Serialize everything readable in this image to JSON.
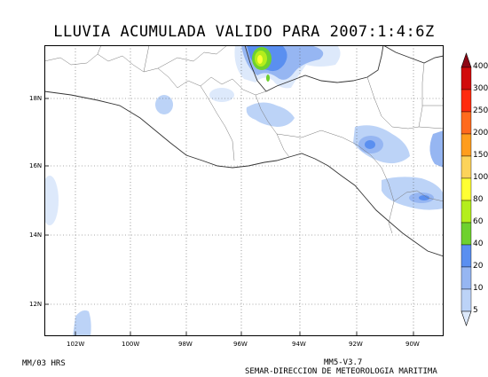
{
  "title": "LLUVIA ACUMULADA VALIDO PARA 2007:1:4:6Z",
  "map": {
    "lon_ticks": [
      "102W",
      "100W",
      "98W",
      "96W",
      "94W",
      "92W",
      "90W"
    ],
    "lat_ticks": [
      "18N",
      "16N",
      "14N",
      "12N"
    ]
  },
  "colorbar": {
    "levels": [
      "5",
      "10",
      "20",
      "40",
      "60",
      "80",
      "100",
      "150",
      "200",
      "250",
      "300",
      "400"
    ],
    "colors": [
      "#dde9fb",
      "#bcd3f7",
      "#96b6f2",
      "#5a8ff0",
      "#6ed12e",
      "#b4ee1c",
      "#ffff33",
      "#fcd35a",
      "#ff9d1d",
      "#ff6a1d",
      "#ff2b0e",
      "#d10b0b",
      "#8e0714"
    ]
  },
  "footer": {
    "left": "MM/03 HRS",
    "model": "MM5-V3.7",
    "agency": "SEMAR-DIRECCION DE METEOROLOGIA MARITIMA"
  }
}
